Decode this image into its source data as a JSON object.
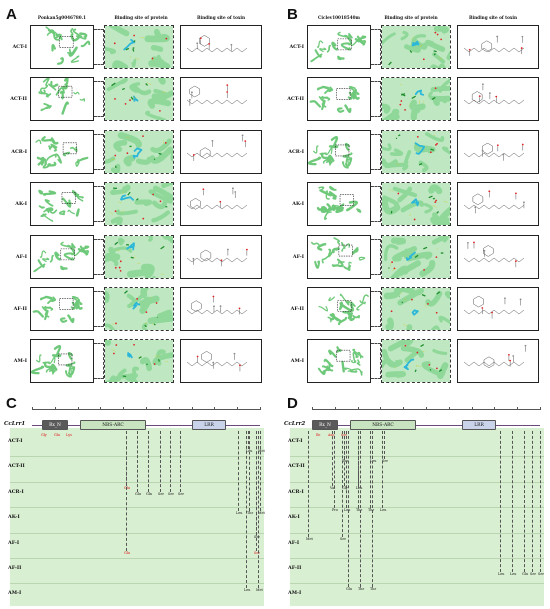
{
  "panels": {
    "a": {
      "letter": "A",
      "headers": [
        "Ponkan5g0046780.1",
        "Binding site of protein",
        "Binding site of toxin"
      ],
      "rows": [
        "ACT-I",
        "ACT-II",
        "ACR-I",
        "AK-I",
        "AF-I",
        "AF-II",
        "AM-I"
      ]
    },
    "b": {
      "letter": "B",
      "headers": [
        "Ciclev10018540m",
        "Binding site of protein",
        "Binding site of toxin"
      ],
      "rows": [
        "ACT-I",
        "ACT-II",
        "ACR-I",
        "AK-I",
        "AF-I",
        "AF-II",
        "AM-I"
      ]
    },
    "c": {
      "letter": "C",
      "gene": "CcLrr1",
      "domains": [
        "Rx_N",
        "NBS-ARC",
        "LRR"
      ],
      "rows": [
        "ACT-I",
        "ACT-II",
        "ACR-I",
        "AK-I",
        "AF-I",
        "AF-II",
        "AM-I"
      ],
      "top_sites": [
        "Gly",
        "Glu",
        "Lys"
      ],
      "sites": {
        "act2": [
          "Leu",
          "Met"
        ],
        "acr1": [
          "Glu",
          "Gln",
          "Ser",
          "Ser",
          "Ser"
        ],
        "acr1b": [
          "Glu"
        ],
        "ak1": [
          "Leu",
          "Thr",
          "Met"
        ],
        "af1": [
          "Ser"
        ],
        "af2": [
          "Glu",
          "Ser"
        ],
        "am1": [
          "Leu",
          "Met"
        ]
      }
    },
    "d": {
      "letter": "D",
      "gene": "CcLrr2",
      "domains": [
        "Rx_N",
        "NBS-ARC",
        "LRR"
      ],
      "rows": [
        "ACT-I",
        "ACT-II",
        "ACR-I",
        "AK-I",
        "AF-I",
        "AF-II",
        "AM-I"
      ],
      "top_sites": [
        "Ile",
        "Asp",
        "Ser"
      ],
      "sites": {
        "act2": [
          "Thr",
          "Leu",
          "Ser"
        ],
        "acr1": [
          "Val",
          "Gly",
          "Leu"
        ],
        "ak1": [
          "Pro",
          "Leu",
          "Thr",
          "Thr",
          "Leu"
        ],
        "af1": [
          "Met",
          "Ser"
        ],
        "af2": [
          "Leu",
          "Leu",
          "Glu",
          "Ser",
          "Ser"
        ],
        "am1": [
          "Glu",
          "Thr",
          "Thr"
        ]
      }
    }
  },
  "colors": {
    "protein_green": "#6fc97a",
    "ligand_cyan": "#2bb7d9",
    "band_green": "#d9efd2",
    "site_red": "#d11111"
  }
}
